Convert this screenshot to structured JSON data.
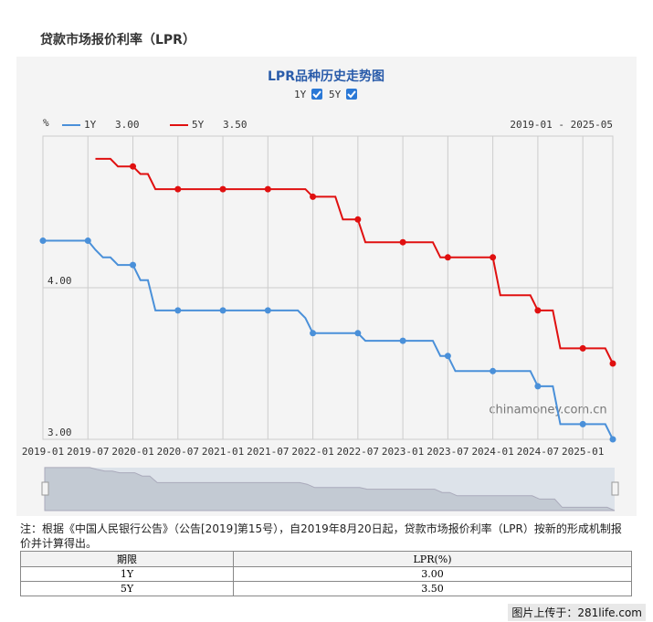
{
  "header": {
    "title": "贷款市场报价利率（LPR）"
  },
  "chart_data": {
    "type": "line",
    "title": "LPR品种历史走势图",
    "y_label": "%",
    "range": "2019-01 - 2025-05",
    "watermark": "chinamoney.com.cn",
    "x": [
      "2019-01",
      "2019-02",
      "2019-03",
      "2019-04",
      "2019-05",
      "2019-06",
      "2019-07",
      "2019-08",
      "2019-09",
      "2019-10",
      "2019-11",
      "2019-12",
      "2020-01",
      "2020-02",
      "2020-03",
      "2020-04",
      "2020-05",
      "2020-06",
      "2020-07",
      "2020-08",
      "2020-09",
      "2020-10",
      "2020-11",
      "2020-12",
      "2021-01",
      "2021-02",
      "2021-03",
      "2021-04",
      "2021-05",
      "2021-06",
      "2021-07",
      "2021-08",
      "2021-09",
      "2021-10",
      "2021-11",
      "2021-12",
      "2022-01",
      "2022-02",
      "2022-03",
      "2022-04",
      "2022-05",
      "2022-06",
      "2022-07",
      "2022-08",
      "2022-09",
      "2022-10",
      "2022-11",
      "2022-12",
      "2023-01",
      "2023-02",
      "2023-03",
      "2023-04",
      "2023-05",
      "2023-06",
      "2023-07",
      "2023-08",
      "2023-09",
      "2023-10",
      "2023-11",
      "2023-12",
      "2024-01",
      "2024-02",
      "2024-03",
      "2024-04",
      "2024-05",
      "2024-06",
      "2024-07",
      "2024-08",
      "2024-09",
      "2024-10",
      "2024-11",
      "2024-12",
      "2025-01",
      "2025-02",
      "2025-03",
      "2025-04",
      "2025-05"
    ],
    "series": [
      {
        "name": "1Y",
        "color": "#4a90d9",
        "latest": "3.00",
        "values": [
          4.31,
          4.31,
          4.31,
          4.31,
          4.31,
          4.31,
          4.31,
          4.25,
          4.2,
          4.2,
          4.15,
          4.15,
          4.15,
          4.05,
          4.05,
          3.85,
          3.85,
          3.85,
          3.85,
          3.85,
          3.85,
          3.85,
          3.85,
          3.85,
          3.85,
          3.85,
          3.85,
          3.85,
          3.85,
          3.85,
          3.85,
          3.85,
          3.85,
          3.85,
          3.85,
          3.8,
          3.7,
          3.7,
          3.7,
          3.7,
          3.7,
          3.7,
          3.7,
          3.65,
          3.65,
          3.65,
          3.65,
          3.65,
          3.65,
          3.65,
          3.65,
          3.65,
          3.65,
          3.55,
          3.55,
          3.45,
          3.45,
          3.45,
          3.45,
          3.45,
          3.45,
          3.45,
          3.45,
          3.45,
          3.45,
          3.45,
          3.35,
          3.35,
          3.35,
          3.1,
          3.1,
          3.1,
          3.1,
          3.1,
          3.1,
          3.1,
          3.0
        ]
      },
      {
        "name": "5Y",
        "color": "#e01010",
        "latest": "3.50",
        "values": [
          null,
          null,
          null,
          null,
          null,
          null,
          null,
          4.85,
          4.85,
          4.85,
          4.8,
          4.8,
          4.8,
          4.75,
          4.75,
          4.65,
          4.65,
          4.65,
          4.65,
          4.65,
          4.65,
          4.65,
          4.65,
          4.65,
          4.65,
          4.65,
          4.65,
          4.65,
          4.65,
          4.65,
          4.65,
          4.65,
          4.65,
          4.65,
          4.65,
          4.65,
          4.6,
          4.6,
          4.6,
          4.6,
          4.45,
          4.45,
          4.45,
          4.3,
          4.3,
          4.3,
          4.3,
          4.3,
          4.3,
          4.3,
          4.3,
          4.3,
          4.3,
          4.2,
          4.2,
          4.2,
          4.2,
          4.2,
          4.2,
          4.2,
          4.2,
          3.95,
          3.95,
          3.95,
          3.95,
          3.95,
          3.85,
          3.85,
          3.85,
          3.6,
          3.6,
          3.6,
          3.6,
          3.6,
          3.6,
          3.6,
          3.5
        ]
      }
    ],
    "xticks": [
      "2019-01",
      "2019-07",
      "2020-01",
      "2020-07",
      "2021-01",
      "2021-07",
      "2022-01",
      "2022-07",
      "2023-01",
      "2023-07",
      "2024-01",
      "2024-07",
      "2025-01"
    ],
    "ylim": [
      3,
      5
    ],
    "yticks": [
      {
        "value": 3,
        "label": "3.00"
      },
      {
        "value": 4,
        "label": "4.00"
      }
    ],
    "grid": true
  },
  "note": "注：根据《中国人民银行公告》（公告[2019]第15号），自2019年8月20日起，贷款市场报价利率（LPR）按新的形成机制报价并计算得出。",
  "table": {
    "columns": [
      "期限",
      "LPR(%)"
    ],
    "rows": [
      [
        "1Y",
        "3.00"
      ],
      [
        "5Y",
        "3.50"
      ]
    ]
  },
  "footer": "图片上传于：281life.com"
}
